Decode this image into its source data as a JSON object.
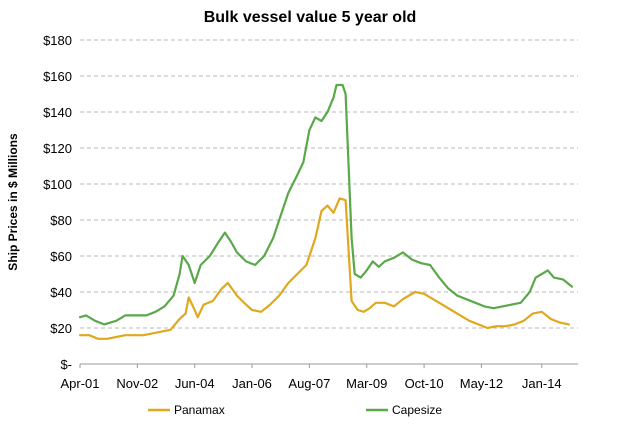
{
  "chart_data": {
    "type": "line",
    "title": "Bulk vessel value 5 year old",
    "ylabel": "Ship Prices in $ Millions",
    "xlabel": "",
    "ylim": [
      0,
      180
    ],
    "yticks": [
      0,
      20,
      40,
      60,
      80,
      100,
      120,
      140,
      160,
      180
    ],
    "ytick_labels": [
      "$-",
      "$20",
      "$40",
      "$60",
      "$80",
      "$100",
      "$120",
      "$140",
      "$160",
      "$180"
    ],
    "xlim": [
      "2001-04",
      "2015-01"
    ],
    "xticks": [
      "2001-04",
      "2002-11",
      "2004-06",
      "2006-01",
      "2007-08",
      "2009-03",
      "2010-10",
      "2012-05",
      "2014-01"
    ],
    "xtick_labels": [
      "Apr-01",
      "Nov-02",
      "Jun-04",
      "Jan-06",
      "Aug-07",
      "Mar-09",
      "Oct-10",
      "May-12",
      "Jan-14"
    ],
    "grid": "horizontal dashed",
    "legend_position": "bottom",
    "series": [
      {
        "name": "Panamax",
        "color": "#e0a81e",
        "points": [
          [
            "2001-04",
            16
          ],
          [
            "2001-07",
            16
          ],
          [
            "2001-10",
            14
          ],
          [
            "2002-01",
            14
          ],
          [
            "2002-04",
            15
          ],
          [
            "2002-07",
            16
          ],
          [
            "2002-10",
            16
          ],
          [
            "2003-01",
            16
          ],
          [
            "2003-04",
            17
          ],
          [
            "2003-07",
            18
          ],
          [
            "2003-10",
            19
          ],
          [
            "2004-01",
            25
          ],
          [
            "2004-03",
            28
          ],
          [
            "2004-04",
            37
          ],
          [
            "2004-06",
            30
          ],
          [
            "2004-07",
            26
          ],
          [
            "2004-09",
            33
          ],
          [
            "2004-12",
            35
          ],
          [
            "2005-03",
            42
          ],
          [
            "2005-05",
            45
          ],
          [
            "2005-08",
            38
          ],
          [
            "2005-11",
            33
          ],
          [
            "2006-01",
            30
          ],
          [
            "2006-04",
            29
          ],
          [
            "2006-07",
            33
          ],
          [
            "2006-10",
            38
          ],
          [
            "2007-01",
            45
          ],
          [
            "2007-04",
            50
          ],
          [
            "2007-07",
            55
          ],
          [
            "2007-10",
            70
          ],
          [
            "2007-12",
            85
          ],
          [
            "2008-02",
            88
          ],
          [
            "2008-04",
            84
          ],
          [
            "2008-06",
            92
          ],
          [
            "2008-08",
            91
          ],
          [
            "2008-10",
            35
          ],
          [
            "2008-12",
            30
          ],
          [
            "2009-02",
            29
          ],
          [
            "2009-04",
            31
          ],
          [
            "2009-06",
            34
          ],
          [
            "2009-09",
            34
          ],
          [
            "2009-12",
            32
          ],
          [
            "2010-03",
            36
          ],
          [
            "2010-07",
            40
          ],
          [
            "2010-10",
            39
          ],
          [
            "2011-01",
            36
          ],
          [
            "2011-04",
            33
          ],
          [
            "2011-07",
            30
          ],
          [
            "2011-10",
            27
          ],
          [
            "2012-01",
            24
          ],
          [
            "2012-04",
            22
          ],
          [
            "2012-07",
            20
          ],
          [
            "2012-10",
            21
          ],
          [
            "2013-01",
            21
          ],
          [
            "2013-04",
            22
          ],
          [
            "2013-07",
            24
          ],
          [
            "2013-10",
            28
          ],
          [
            "2014-01",
            29
          ],
          [
            "2014-04",
            25
          ],
          [
            "2014-07",
            23
          ],
          [
            "2014-10",
            22
          ]
        ]
      },
      {
        "name": "Capesize",
        "color": "#5aa84a",
        "points": [
          [
            "2001-04",
            26
          ],
          [
            "2001-06",
            27
          ],
          [
            "2001-09",
            24
          ],
          [
            "2001-12",
            22
          ],
          [
            "2002-04",
            24
          ],
          [
            "2002-07",
            27
          ],
          [
            "2002-11",
            27
          ],
          [
            "2003-02",
            27
          ],
          [
            "2003-05",
            29
          ],
          [
            "2003-08",
            32
          ],
          [
            "2003-11",
            38
          ],
          [
            "2004-01",
            50
          ],
          [
            "2004-02",
            60
          ],
          [
            "2004-04",
            55
          ],
          [
            "2004-06",
            45
          ],
          [
            "2004-08",
            55
          ],
          [
            "2004-11",
            60
          ],
          [
            "2005-02",
            68
          ],
          [
            "2005-04",
            73
          ],
          [
            "2005-06",
            68
          ],
          [
            "2005-08",
            62
          ],
          [
            "2005-11",
            57
          ],
          [
            "2006-02",
            55
          ],
          [
            "2006-05",
            60
          ],
          [
            "2006-08",
            70
          ],
          [
            "2006-10",
            80
          ],
          [
            "2007-01",
            95
          ],
          [
            "2007-04",
            105
          ],
          [
            "2007-06",
            112
          ],
          [
            "2007-08",
            130
          ],
          [
            "2007-10",
            137
          ],
          [
            "2007-12",
            135
          ],
          [
            "2008-02",
            140
          ],
          [
            "2008-04",
            148
          ],
          [
            "2008-05",
            155
          ],
          [
            "2008-07",
            155
          ],
          [
            "2008-08",
            150
          ],
          [
            "2008-10",
            70
          ],
          [
            "2008-11",
            50
          ],
          [
            "2009-01",
            48
          ],
          [
            "2009-03",
            52
          ],
          [
            "2009-05",
            57
          ],
          [
            "2009-07",
            54
          ],
          [
            "2009-09",
            57
          ],
          [
            "2009-12",
            59
          ],
          [
            "2010-03",
            62
          ],
          [
            "2010-06",
            58
          ],
          [
            "2010-09",
            56
          ],
          [
            "2010-12",
            55
          ],
          [
            "2011-03",
            48
          ],
          [
            "2011-06",
            42
          ],
          [
            "2011-09",
            38
          ],
          [
            "2011-12",
            36
          ],
          [
            "2012-03",
            34
          ],
          [
            "2012-06",
            32
          ],
          [
            "2012-09",
            31
          ],
          [
            "2012-12",
            32
          ],
          [
            "2013-03",
            33
          ],
          [
            "2013-06",
            34
          ],
          [
            "2013-09",
            40
          ],
          [
            "2013-11",
            48
          ],
          [
            "2014-01",
            50
          ],
          [
            "2014-03",
            52
          ],
          [
            "2014-05",
            48
          ],
          [
            "2014-08",
            47
          ],
          [
            "2014-11",
            43
          ]
        ]
      }
    ]
  }
}
